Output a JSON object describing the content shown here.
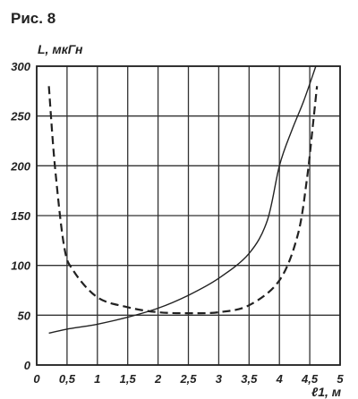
{
  "figure_label": "Рис. 8",
  "chart_data": {
    "type": "line",
    "ylabel": "L, мкГн",
    "xlabel": "ℓ1, м",
    "xlim": [
      0,
      5
    ],
    "ylim": [
      0,
      300
    ],
    "x_ticks": [
      "0",
      "0,5",
      "1",
      "1,5",
      "2",
      "2,5",
      "3",
      "3,5",
      "4",
      "4,5",
      "5"
    ],
    "y_ticks": [
      "0",
      "50",
      "100",
      "150",
      "200",
      "250",
      "300"
    ],
    "grid": true,
    "series": [
      {
        "style": "solid",
        "x": [
          0.2,
          0.5,
          1.0,
          1.5,
          2.0,
          2.5,
          3.0,
          3.5,
          3.8,
          4.0,
          4.2,
          4.4,
          4.6
        ],
        "y": [
          32,
          36,
          41,
          48,
          57,
          70,
          87,
          112,
          145,
          200,
          235,
          265,
          300
        ]
      },
      {
        "style": "dashed",
        "x": [
          0.2,
          0.3,
          0.45,
          0.6,
          1.0,
          1.5,
          2.0,
          2.5,
          3.0,
          3.5,
          4.0,
          4.3,
          4.45,
          4.55,
          4.62
        ],
        "y": [
          280,
          200,
          120,
          95,
          68,
          58,
          53,
          52,
          53,
          60,
          85,
          130,
          185,
          240,
          280
        ]
      }
    ]
  }
}
